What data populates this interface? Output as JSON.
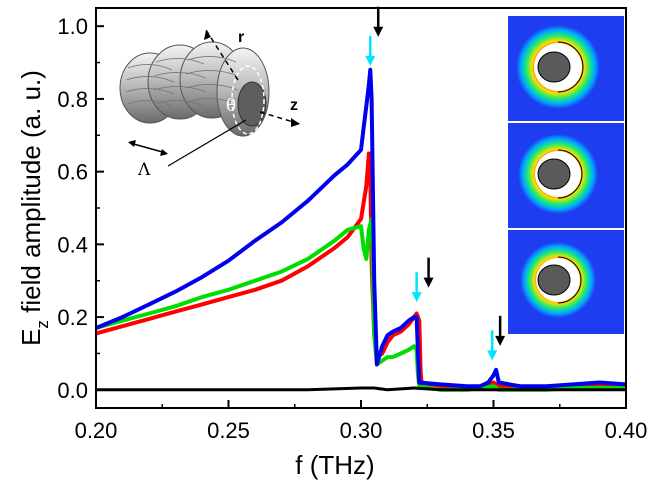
{
  "chart_data": {
    "type": "line",
    "xlabel": "f (THz)",
    "ylabel_main": "E",
    "ylabel_sub": "z",
    "ylabel_rest": " field amplitude (a. u.)",
    "xlim": [
      0.2,
      0.4
    ],
    "ylim": [
      -0.05,
      1.05
    ],
    "xticks": [
      0.2,
      0.25,
      0.3,
      0.35,
      0.4
    ],
    "xtick_labels": [
      "0.20",
      "0.25",
      "0.30",
      "0.35",
      "0.40"
    ],
    "yticks": [
      0.0,
      0.2,
      0.4,
      0.6,
      0.8,
      1.0
    ],
    "ytick_labels": [
      "0.0",
      "0.2",
      "0.4",
      "0.6",
      "0.8",
      "1.0"
    ],
    "grid": false,
    "series": [
      {
        "color": "#ff0000",
        "x": [
          0.2,
          0.21,
          0.22,
          0.23,
          0.24,
          0.25,
          0.26,
          0.27,
          0.28,
          0.29,
          0.295,
          0.3,
          0.302,
          0.303,
          0.3035,
          0.304,
          0.305,
          0.306,
          0.308,
          0.31,
          0.312,
          0.315,
          0.318,
          0.32,
          0.321,
          0.322,
          0.3225,
          0.323,
          0.33,
          0.34,
          0.345,
          0.35,
          0.352,
          0.36,
          0.37,
          0.38,
          0.39,
          0.4
        ],
        "y": [
          0.155,
          0.175,
          0.195,
          0.215,
          0.235,
          0.255,
          0.275,
          0.3,
          0.34,
          0.39,
          0.42,
          0.47,
          0.56,
          0.65,
          0.6,
          0.35,
          0.15,
          0.09,
          0.1,
          0.13,
          0.15,
          0.16,
          0.18,
          0.2,
          0.21,
          0.19,
          0.05,
          0.01,
          0.01,
          0.005,
          0.01,
          0.02,
          0.01,
          0.005,
          0.005,
          0.01,
          0.01,
          0.01
        ]
      },
      {
        "color": "#00dd00",
        "x": [
          0.2,
          0.21,
          0.22,
          0.23,
          0.24,
          0.25,
          0.26,
          0.27,
          0.28,
          0.29,
          0.295,
          0.3,
          0.301,
          0.302,
          0.303,
          0.304,
          0.305,
          0.306,
          0.308,
          0.31,
          0.312,
          0.315,
          0.318,
          0.32,
          0.321,
          0.3215,
          0.322,
          0.33,
          0.34,
          0.345,
          0.35,
          0.352,
          0.36,
          0.37,
          0.38,
          0.39,
          0.4
        ],
        "y": [
          0.17,
          0.19,
          0.21,
          0.23,
          0.255,
          0.275,
          0.3,
          0.325,
          0.36,
          0.41,
          0.44,
          0.45,
          0.39,
          0.36,
          0.44,
          0.47,
          0.15,
          0.07,
          0.08,
          0.09,
          0.09,
          0.1,
          0.11,
          0.12,
          0.11,
          0.04,
          0.01,
          0.0,
          0.0,
          0.005,
          0.01,
          0.0,
          0.0,
          0.0,
          0.005,
          0.005,
          0.005
        ]
      },
      {
        "color": "#0000ee",
        "x": [
          0.2,
          0.21,
          0.22,
          0.23,
          0.24,
          0.25,
          0.26,
          0.27,
          0.28,
          0.29,
          0.295,
          0.3,
          0.301,
          0.302,
          0.303,
          0.3035,
          0.304,
          0.305,
          0.306,
          0.308,
          0.31,
          0.312,
          0.315,
          0.318,
          0.32,
          0.321,
          0.3215,
          0.322,
          0.33,
          0.34,
          0.345,
          0.348,
          0.35,
          0.351,
          0.352,
          0.36,
          0.37,
          0.38,
          0.39,
          0.4
        ],
        "y": [
          0.17,
          0.2,
          0.235,
          0.27,
          0.31,
          0.355,
          0.41,
          0.46,
          0.52,
          0.59,
          0.62,
          0.66,
          0.72,
          0.78,
          0.84,
          0.88,
          0.8,
          0.3,
          0.07,
          0.12,
          0.15,
          0.16,
          0.17,
          0.19,
          0.2,
          0.2,
          0.1,
          0.02,
          0.015,
          0.01,
          0.01,
          0.02,
          0.04,
          0.055,
          0.02,
          0.01,
          0.01,
          0.015,
          0.02,
          0.015
        ]
      },
      {
        "color": "#000000",
        "x": [
          0.2,
          0.25,
          0.28,
          0.3,
          0.305,
          0.31,
          0.32,
          0.33,
          0.35,
          0.37,
          0.4
        ],
        "y": [
          0.0,
          0.0,
          0.0,
          0.005,
          0.005,
          0.0,
          0.005,
          0.0,
          0.0,
          0.0,
          0.0
        ]
      }
    ],
    "arrows": [
      {
        "x": 0.3035,
        "y_tip": 0.88,
        "color": "#00e5ff"
      },
      {
        "x": 0.3065,
        "y_tip": 0.96,
        "color": "#000000"
      },
      {
        "x": 0.321,
        "y_tip": 0.23,
        "color": "#00e5ff"
      },
      {
        "x": 0.3255,
        "y_tip": 0.27,
        "color": "#000000"
      },
      {
        "x": 0.3495,
        "y_tip": 0.07,
        "color": "#00e5ff"
      },
      {
        "x": 0.3525,
        "y_tip": 0.11,
        "color": "#000000"
      }
    ],
    "inset_labels": {
      "r": "r",
      "z": "z",
      "theta": "θ",
      "lambda": "Λ"
    },
    "field_map_panels": 3
  }
}
